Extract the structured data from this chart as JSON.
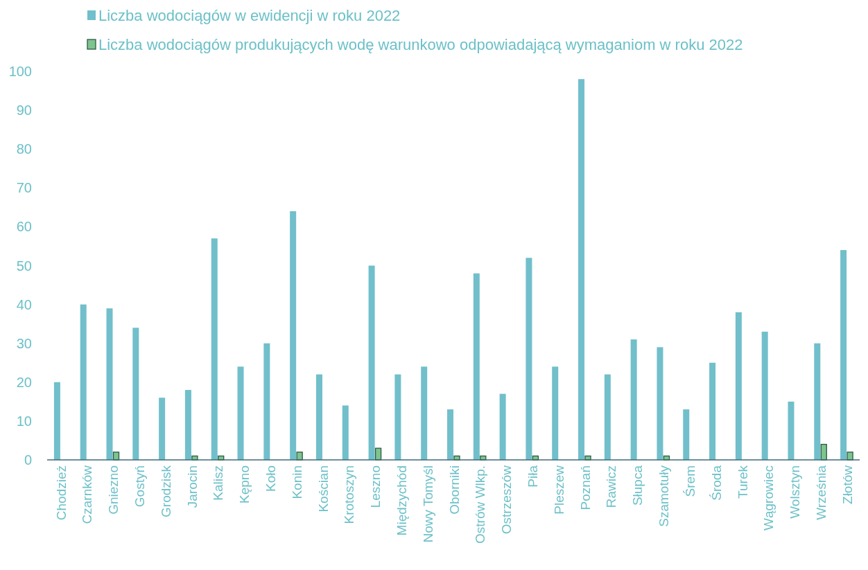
{
  "chart_data": {
    "type": "bar",
    "categories": [
      "Chodzież",
      "Czarnków",
      "Gniezno",
      "Gostyń",
      "Grodzisk",
      "Jarocin",
      "Kalisz",
      "Kępno",
      "Koło",
      "Konin",
      "Kościan",
      "Krotoszyn",
      "Leszno",
      "Międzychód",
      "Nowy Tomyśl",
      "Oborniki",
      "Ostrów Wlkp.",
      "Ostrzeszów",
      "Piła",
      "Pleszew",
      "Poznań",
      "Rawicz",
      "Słupca",
      "Szamotuły",
      "Śrem",
      "Środa",
      "Turek",
      "Wągrowiec",
      "Wolsztyn",
      "Września",
      "Złotów"
    ],
    "series": [
      {
        "name": "Liczba wodociągów w ewidencji w roku 2022",
        "color": "#71bfcb",
        "values": [
          20,
          40,
          39,
          34,
          16,
          18,
          57,
          24,
          30,
          64,
          22,
          14,
          50,
          22,
          24,
          13,
          48,
          17,
          52,
          24,
          98,
          22,
          31,
          29,
          13,
          25,
          38,
          33,
          15,
          30,
          54
        ]
      },
      {
        "name": "Liczba wodociągów produkujących wodę warunkowo odpowiadającą wymaganiom w roku 2022",
        "color": "#7dc48e",
        "values": [
          0,
          0,
          2,
          0,
          0,
          1,
          1,
          0,
          0,
          2,
          0,
          0,
          3,
          0,
          0,
          1,
          1,
          0,
          1,
          0,
          1,
          0,
          0,
          1,
          0,
          0,
          0,
          0,
          0,
          4,
          2
        ]
      }
    ],
    "ylim": [
      0,
      100
    ],
    "yticks": [
      0,
      10,
      20,
      30,
      40,
      50,
      60,
      70,
      80,
      90,
      100
    ],
    "grid": false,
    "legend": "top left"
  }
}
